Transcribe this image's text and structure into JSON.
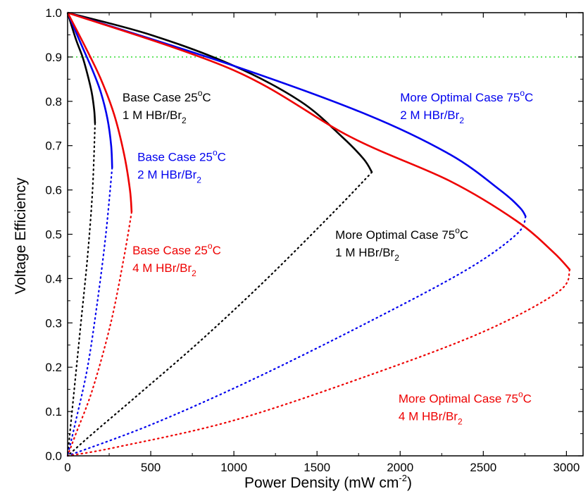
{
  "chart_data": {
    "type": "line",
    "xlabel": "Power Density (mW cm",
    "xlabel_sup": "-2",
    "xlabel_end": ")",
    "ylabel": "Voltage Efficiency",
    "xlim": [
      0,
      3100
    ],
    "ylim": [
      0,
      1.0
    ],
    "xticks": [
      0,
      500,
      1000,
      1500,
      2000,
      2500,
      3000
    ],
    "yticks": [
      0.0,
      0.1,
      0.2,
      0.3,
      0.4,
      0.5,
      0.6,
      0.7,
      0.8,
      0.9,
      1.0
    ],
    "xtick_labels": [
      "0",
      "500",
      "1000",
      "1500",
      "2000",
      "2500",
      "3000"
    ],
    "ytick_labels": [
      "0.0",
      "0.1",
      "0.2",
      "0.3",
      "0.4",
      "0.5",
      "0.6",
      "0.7",
      "0.8",
      "0.9",
      "1.0"
    ],
    "reference_line": {
      "y": 0.9,
      "color": "#33dd33",
      "style": "dotted"
    },
    "series": [
      {
        "color": "#000000",
        "solid_from_ve": 0.75,
        "points": [
          [
            0,
            1.0
          ],
          [
            50,
            0.94
          ],
          [
            90,
            0.9
          ],
          [
            120,
            0.86
          ],
          [
            145,
            0.82
          ],
          [
            160,
            0.78
          ],
          [
            165,
            0.75
          ],
          [
            150,
            0.6
          ],
          [
            120,
            0.45
          ],
          [
            80,
            0.3
          ],
          [
            40,
            0.15
          ],
          [
            0,
            0.0
          ]
        ]
      },
      {
        "color": "#0000ee",
        "solid_from_ve": 0.65,
        "points": [
          [
            0,
            1.0
          ],
          [
            80,
            0.93
          ],
          [
            150,
            0.87
          ],
          [
            200,
            0.82
          ],
          [
            240,
            0.76
          ],
          [
            262,
            0.7
          ],
          [
            268,
            0.65
          ],
          [
            230,
            0.5
          ],
          [
            180,
            0.35
          ],
          [
            120,
            0.2
          ],
          [
            50,
            0.08
          ],
          [
            0,
            0.0
          ]
        ]
      },
      {
        "color": "#ee0000",
        "solid_from_ve": 0.55,
        "points": [
          [
            0,
            1.0
          ],
          [
            110,
            0.92
          ],
          [
            200,
            0.85
          ],
          [
            280,
            0.77
          ],
          [
            340,
            0.68
          ],
          [
            375,
            0.6
          ],
          [
            385,
            0.55
          ],
          [
            340,
            0.45
          ],
          [
            260,
            0.3
          ],
          [
            150,
            0.15
          ],
          [
            50,
            0.05
          ],
          [
            0,
            0.0
          ]
        ]
      },
      {
        "color": "#000000",
        "solid_from_ve": 0.64,
        "points": [
          [
            0,
            1.0
          ],
          [
            500,
            0.95
          ],
          [
            1000,
            0.88
          ],
          [
            1400,
            0.8
          ],
          [
            1650,
            0.72
          ],
          [
            1780,
            0.67
          ],
          [
            1830,
            0.64
          ],
          [
            1600,
            0.55
          ],
          [
            1200,
            0.4
          ],
          [
            800,
            0.26
          ],
          [
            400,
            0.13
          ],
          [
            150,
            0.05
          ],
          [
            0,
            0.0
          ]
        ]
      },
      {
        "color": "#0000ee",
        "solid_from_ve": 0.54,
        "points": [
          [
            0,
            1.0
          ],
          [
            1000,
            0.88
          ],
          [
            1800,
            0.77
          ],
          [
            2300,
            0.68
          ],
          [
            2600,
            0.6
          ],
          [
            2720,
            0.56
          ],
          [
            2755,
            0.54
          ],
          [
            2700,
            0.5
          ],
          [
            2400,
            0.42
          ],
          [
            1800,
            0.3
          ],
          [
            1100,
            0.17
          ],
          [
            500,
            0.07
          ],
          [
            0,
            0.0
          ]
        ]
      },
      {
        "color": "#ee0000",
        "solid_from_ve": 0.42,
        "points": [
          [
            0,
            1.0
          ],
          [
            1000,
            0.87
          ],
          [
            1700,
            0.72
          ],
          [
            2300,
            0.62
          ],
          [
            2700,
            0.53
          ],
          [
            2920,
            0.46
          ],
          [
            3020,
            0.42
          ],
          [
            2950,
            0.37
          ],
          [
            2500,
            0.28
          ],
          [
            1800,
            0.18
          ],
          [
            1000,
            0.08
          ],
          [
            300,
            0.02
          ],
          [
            0,
            0.0
          ]
        ]
      }
    ],
    "annotations": [
      {
        "line1": "Base Case 25",
        "sup": "o",
        "line1_end": "C",
        "line2": "1 M HBr/Br",
        "sub": "2",
        "color": "#000000",
        "x": 330,
        "y": 0.8
      },
      {
        "line1": "Base Case 25",
        "sup": "o",
        "line1_end": "C",
        "line2": "2 M HBr/Br",
        "sub": "2",
        "color": "#0000ee",
        "x": 420,
        "y": 0.665
      },
      {
        "line1": "Base Case 25",
        "sup": "o",
        "line1_end": "C",
        "line2": "4 M HBr/Br",
        "sub": "2",
        "color": "#ee0000",
        "x": 390,
        "y": 0.455
      },
      {
        "line1": "More Optimal Case 75",
        "sup": "o",
        "line1_end": "C",
        "line2": "1 M HBr/Br",
        "sub": "2",
        "color": "#000000",
        "x": 1610,
        "y": 0.49
      },
      {
        "line1": "More Optimal Case 75",
        "sup": "o",
        "line1_end": "C",
        "line2": "2 M HBr/Br",
        "sub": "2",
        "color": "#0000ee",
        "x": 2000,
        "y": 0.8
      },
      {
        "line1": "More Optimal Case 75",
        "sup": "o",
        "line1_end": "C",
        "line2": "4 M HBr/Br",
        "sub": "2",
        "color": "#ee0000",
        "x": 1990,
        "y": 0.12
      }
    ]
  }
}
